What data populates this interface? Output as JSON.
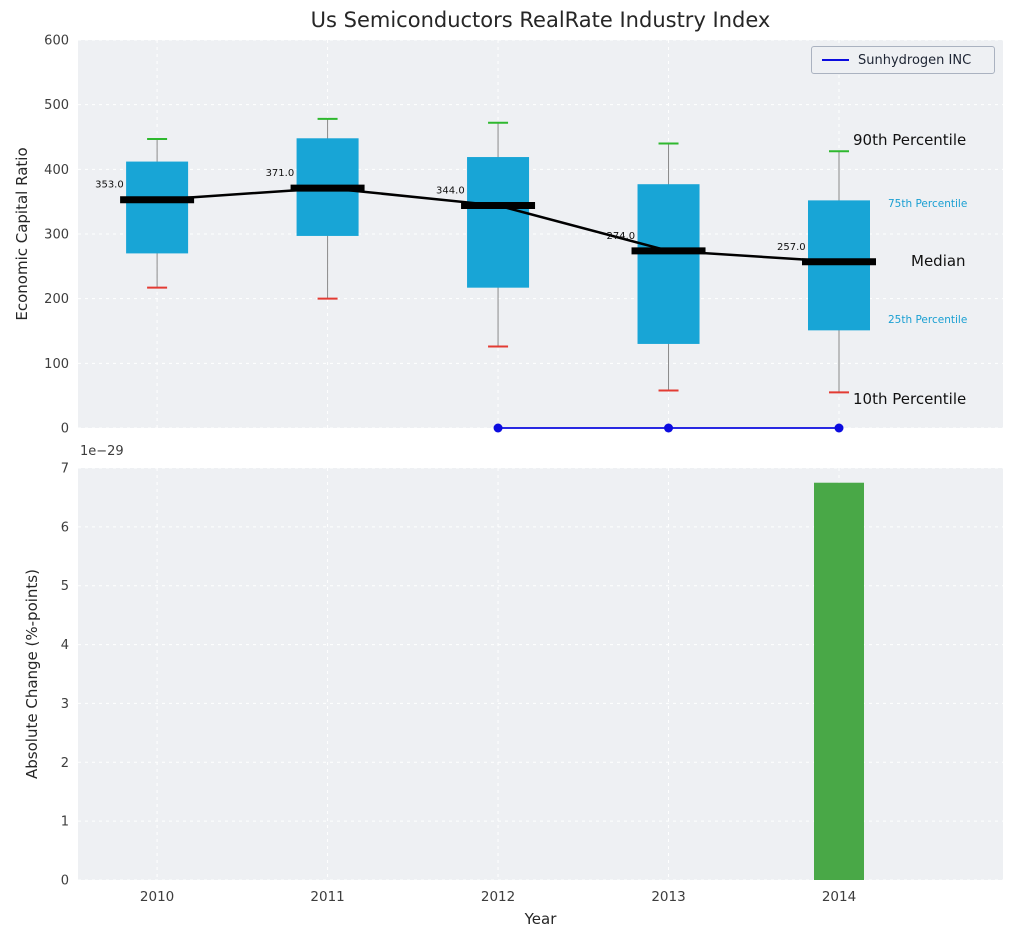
{
  "title": "Us Semiconductors RealRate Industry Index",
  "legend": {
    "label": "Sunhydrogen INC"
  },
  "colors": {
    "box": "#18a5d6",
    "median": "#000000",
    "whisker": "#8a8a8a",
    "cap_high": "#2eb82e",
    "cap_low": "#e33b33",
    "overlay": "#0b0bdf",
    "bar": "#49a847",
    "panel_bg": "#eef0f3",
    "grid": "#ffffff",
    "percentile_label": "#199fd2"
  },
  "chart_data": [
    {
      "type": "boxplot",
      "title": "Us Semiconductors RealRate Industry Index",
      "ylabel": "Economic Capital Ratio",
      "ylim": [
        0,
        600
      ],
      "yticks": [
        0,
        100,
        200,
        300,
        400,
        500,
        600
      ],
      "categories": [
        2010,
        2011,
        2012,
        2013,
        2014
      ],
      "grid": true,
      "legend_position": "upper right",
      "boxes": [
        {
          "year": 2010,
          "p10": 217,
          "p25": 270,
          "median": 353,
          "p75": 412,
          "p90": 447,
          "label": "353.0"
        },
        {
          "year": 2011,
          "p10": 200,
          "p25": 297,
          "median": 371,
          "p75": 448,
          "p90": 478,
          "label": "371.0"
        },
        {
          "year": 2012,
          "p10": 126,
          "p25": 217,
          "median": 344,
          "p75": 419,
          "p90": 472,
          "label": "344.0"
        },
        {
          "year": 2013,
          "p10": 58,
          "p25": 130,
          "median": 274,
          "p75": 377,
          "p90": 440,
          "label": "274.0"
        },
        {
          "year": 2014,
          "p10": 55,
          "p25": 151,
          "median": 257,
          "p75": 352,
          "p90": 428,
          "label": "257.0"
        }
      ],
      "overlay_line": {
        "name": "Sunhydrogen INC",
        "x": [
          2012,
          2013,
          2014
        ],
        "y": [
          0,
          0,
          0
        ]
      },
      "annotations": [
        {
          "text": "90th Percentile"
        },
        {
          "text": "75th Percentile"
        },
        {
          "text": "Median"
        },
        {
          "text": "25th Percentile"
        },
        {
          "text": "10th Percentile"
        }
      ]
    },
    {
      "type": "bar",
      "xlabel": "Year",
      "ylabel": "Absolute Change (%-points)",
      "offset_text": "1e−29",
      "unit_multiplier": "1e-29",
      "ylim": [
        0,
        7
      ],
      "yticks": [
        0,
        1,
        2,
        3,
        4,
        5,
        6,
        7
      ],
      "categories": [
        2010,
        2011,
        2012,
        2013,
        2014
      ],
      "values": [
        0,
        0,
        0,
        0,
        6.75
      ],
      "bar_color": "#49a847",
      "grid": true
    }
  ]
}
